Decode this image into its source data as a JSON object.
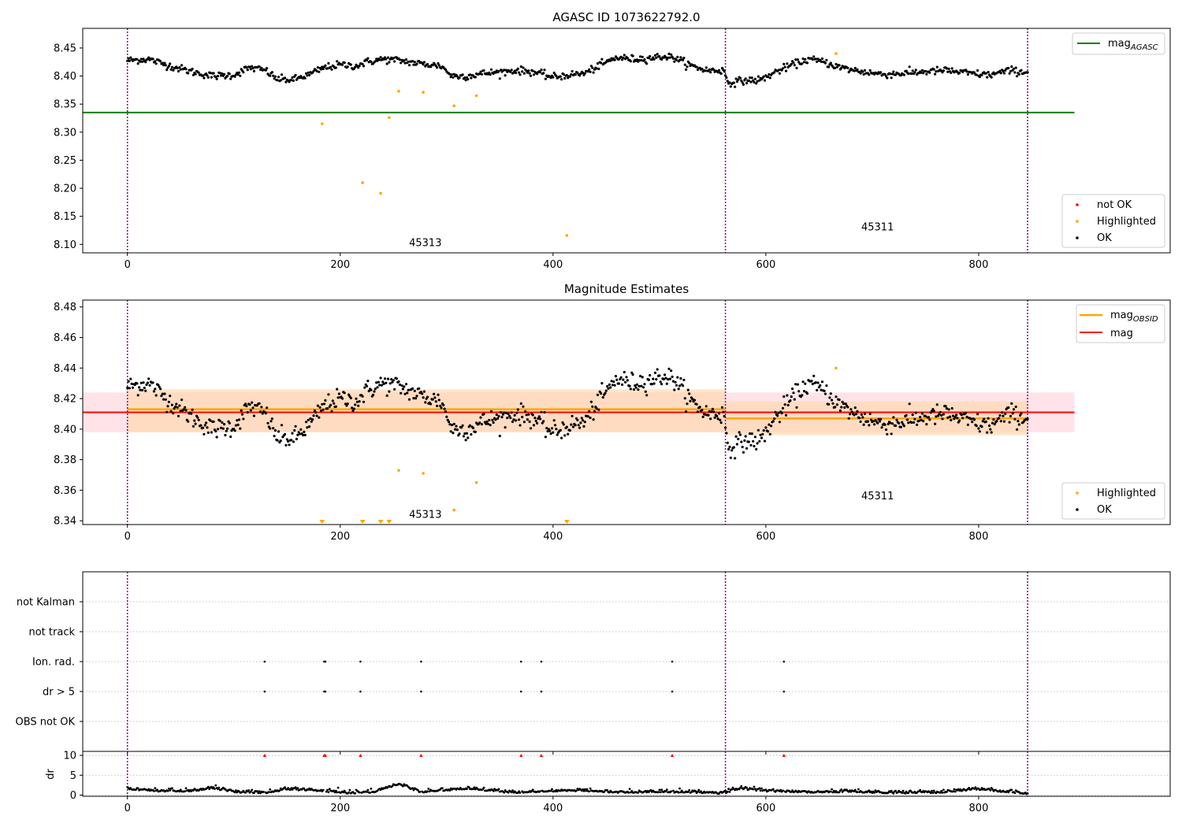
{
  "colors": {
    "ok": "#000000",
    "not_ok": "#ff0000",
    "highlighted": "#ffa500",
    "mag_agasc": "#008000",
    "mag_obsid": "#ffa500",
    "mag": "#ff0000",
    "obs_divider": "#800080",
    "mag_band": "#ffc0cb",
    "obsid_band": "#ffd8b0"
  },
  "chart_data": [
    {
      "type": "scatter",
      "title": "AGASC ID 1073622792.0",
      "xlim": [
        -42,
        980
      ],
      "ylim": [
        8.085,
        8.485
      ],
      "xticks": [
        "0",
        "200",
        "400",
        "600",
        "800"
      ],
      "yticks": [
        "8.10",
        "8.15",
        "8.20",
        "8.25",
        "8.30",
        "8.35",
        "8.40",
        "8.45"
      ],
      "lines": [
        {
          "name": "mag_AGASC",
          "y": 8.335,
          "x": [
            -42,
            890
          ]
        }
      ],
      "legend_lines": {
        "main": "mag",
        "sub": "AGASC"
      },
      "legend_points": [
        "not OK",
        "Highlighted",
        "OK"
      ],
      "observations": [
        {
          "obsid": "45313",
          "x_start": 0,
          "x_end": 562,
          "label_x": 280,
          "label_y": 8.097
        },
        {
          "obsid": "45311",
          "x_start": 562,
          "x_end": 846,
          "label_x": 705,
          "label_y": 8.125
        }
      ],
      "highlighted_points": [
        {
          "x": 183,
          "y": 8.315
        },
        {
          "x": 221,
          "y": 8.21
        },
        {
          "x": 238,
          "y": 8.191
        },
        {
          "x": 246,
          "y": 8.326
        },
        {
          "x": 255,
          "y": 8.373
        },
        {
          "x": 278,
          "y": 8.371
        },
        {
          "x": 307,
          "y": 8.347
        },
        {
          "x": 328,
          "y": 8.365
        },
        {
          "x": 413,
          "y": 8.116
        },
        {
          "x": 666,
          "y": 8.44
        }
      ],
      "ok_trend": [
        [
          0,
          8.428
        ],
        [
          20,
          8.43
        ],
        [
          40,
          8.418
        ],
        [
          60,
          8.408
        ],
        [
          80,
          8.4
        ],
        [
          100,
          8.402
        ],
        [
          115,
          8.415
        ],
        [
          130,
          8.41
        ],
        [
          140,
          8.395
        ],
        [
          155,
          8.393
        ],
        [
          170,
          8.402
        ],
        [
          185,
          8.415
        ],
        [
          200,
          8.42
        ],
        [
          215,
          8.418
        ],
        [
          225,
          8.425
        ],
        [
          240,
          8.43
        ],
        [
          255,
          8.428
        ],
        [
          275,
          8.422
        ],
        [
          295,
          8.418
        ],
        [
          305,
          8.4
        ],
        [
          320,
          8.4
        ],
        [
          335,
          8.405
        ],
        [
          350,
          8.407
        ],
        [
          365,
          8.41
        ],
        [
          380,
          8.408
        ],
        [
          400,
          8.398
        ],
        [
          415,
          8.402
        ],
        [
          430,
          8.405
        ],
        [
          445,
          8.42
        ],
        [
          460,
          8.433
        ],
        [
          475,
          8.43
        ],
        [
          490,
          8.432
        ],
        [
          505,
          8.435
        ],
        [
          515,
          8.432
        ],
        [
          530,
          8.418
        ],
        [
          545,
          8.41
        ],
        [
          560,
          8.41
        ],
        [
          565,
          8.388
        ],
        [
          580,
          8.392
        ],
        [
          595,
          8.393
        ],
        [
          610,
          8.408
        ],
        [
          625,
          8.42
        ],
        [
          640,
          8.43
        ],
        [
          655,
          8.425
        ],
        [
          670,
          8.415
        ],
        [
          690,
          8.408
        ],
        [
          710,
          8.403
        ],
        [
          730,
          8.405
        ],
        [
          750,
          8.408
        ],
        [
          770,
          8.41
        ],
        [
          790,
          8.405
        ],
        [
          810,
          8.402
        ],
        [
          830,
          8.41
        ],
        [
          846,
          8.406
        ]
      ],
      "ok_range": [
        0,
        846
      ],
      "ok_noise": 0.006
    },
    {
      "type": "scatter",
      "title": "Magnitude Estimates",
      "xlim": [
        -42,
        980
      ],
      "ylim": [
        8.3375,
        8.4845
      ],
      "xticks": [
        "0",
        "200",
        "400",
        "600",
        "800"
      ],
      "yticks": [
        "8.34",
        "8.36",
        "8.38",
        "8.40",
        "8.42",
        "8.44",
        "8.46",
        "8.48"
      ],
      "lines": [
        {
          "name": "mag",
          "y": 8.411,
          "x": [
            -42,
            890
          ]
        }
      ],
      "obsid_lines": [
        {
          "y": 8.413,
          "x": [
            0,
            562
          ]
        },
        {
          "y": 8.407,
          "x": [
            562,
            846
          ]
        }
      ],
      "bands": [
        {
          "name": "mag",
          "y": [
            8.398,
            8.424
          ],
          "x": [
            -42,
            890
          ]
        },
        {
          "name": "mag_OBSID",
          "y": [
            8.398,
            8.426
          ],
          "x": [
            0,
            562
          ]
        },
        {
          "name": "mag_OBSID",
          "y": [
            8.396,
            8.418
          ],
          "x": [
            562,
            846
          ]
        }
      ],
      "legend_lines": {
        "main": "mag",
        "sub": "OBSID",
        "second": "mag"
      },
      "legend_points": [
        "Highlighted",
        "OK"
      ],
      "observations": [
        {
          "obsid": "45313",
          "x_start": 0,
          "x_end": 562,
          "label_x": 280,
          "label_y": 8.342
        },
        {
          "obsid": "45311",
          "x_start": 562,
          "x_end": 846,
          "label_x": 705,
          "label_y": 8.354
        }
      ],
      "highlighted_points": [
        {
          "x": 255,
          "y": 8.373
        },
        {
          "x": 278,
          "y": 8.371
        },
        {
          "x": 307,
          "y": 8.347
        },
        {
          "x": 328,
          "y": 8.365
        },
        {
          "x": 666,
          "y": 8.44
        }
      ],
      "highlighted_below": [
        183,
        221,
        238,
        246,
        413
      ],
      "ok_trend_ref": 0,
      "ok_noise": 0.008
    },
    {
      "type": "scatter",
      "title": "",
      "xlim": [
        -42,
        980
      ],
      "categories": [
        "OBS not OK",
        "dr > 5",
        "Ion. rad.",
        "not track",
        "not Kalman"
      ],
      "flag_points": {
        "dr > 5": [
          129,
          185,
          186,
          219,
          276,
          370,
          389,
          512,
          617
        ],
        "Ion. rad.": [
          129,
          185,
          186,
          219,
          276,
          370,
          389,
          512,
          617
        ]
      },
      "observations": [
        {
          "obsid": "45313",
          "x_start": 0,
          "x_end": 562
        },
        {
          "obsid": "45311",
          "x_start": 562,
          "x_end": 846
        }
      ]
    },
    {
      "type": "line",
      "title": "",
      "ylabel": "dr",
      "xlim": [
        -42,
        980
      ],
      "ylim": [
        -0.3,
        11
      ],
      "xticks": [
        "0",
        "200",
        "400",
        "600",
        "800"
      ],
      "yticks": [
        "0",
        "5",
        "10"
      ],
      "threshold": 10,
      "capped_points": [
        129,
        185,
        186,
        219,
        276,
        370,
        389,
        512,
        617
      ],
      "dr_trend": [
        [
          0,
          1.4
        ],
        [
          30,
          0.8
        ],
        [
          60,
          0.9
        ],
        [
          80,
          1.6
        ],
        [
          100,
          0.7
        ],
        [
          130,
          0.4
        ],
        [
          150,
          1.3
        ],
        [
          175,
          1.1
        ],
        [
          200,
          0.4
        ],
        [
          230,
          0.5
        ],
        [
          255,
          2.6
        ],
        [
          275,
          0.6
        ],
        [
          320,
          1.5
        ],
        [
          360,
          0.5
        ],
        [
          400,
          0.9
        ],
        [
          430,
          1.0
        ],
        [
          460,
          0.5
        ],
        [
          500,
          0.7
        ],
        [
          530,
          0.6
        ],
        [
          560,
          0.3
        ],
        [
          575,
          1.5
        ],
        [
          600,
          0.9
        ],
        [
          640,
          0.6
        ],
        [
          680,
          0.7
        ],
        [
          720,
          0.4
        ],
        [
          760,
          0.5
        ],
        [
          800,
          1.3
        ],
        [
          846,
          0.2
        ]
      ],
      "observations": [
        {
          "obsid": "45313",
          "x_start": 0,
          "x_end": 562
        },
        {
          "obsid": "45311",
          "x_start": 562,
          "x_end": 846
        }
      ]
    }
  ]
}
